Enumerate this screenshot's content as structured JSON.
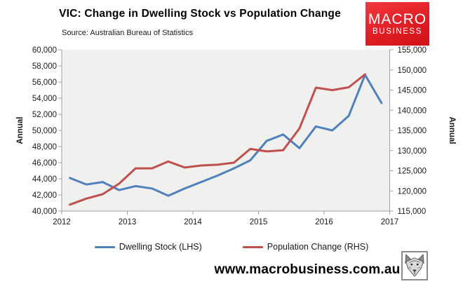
{
  "header": {
    "title": "VIC: Change in Dwelling Stock vs Population Change",
    "subtitle": "Source: Australian Bureau of Statistics",
    "logo": {
      "line1": "MACRO",
      "line2": "BUSINESS",
      "bg_color": "#e01e24"
    }
  },
  "chart_data": {
    "type": "line",
    "x_categories": [
      "2012 Q1",
      "2012 Q2",
      "2012 Q3",
      "2012 Q4",
      "2013 Q1",
      "2013 Q2",
      "2013 Q3",
      "2013 Q4",
      "2014 Q1",
      "2014 Q2",
      "2014 Q3",
      "2014 Q4",
      "2015 Q1",
      "2015 Q2",
      "2015 Q3",
      "2015 Q4",
      "2016 Q1",
      "2016 Q2",
      "2016 Q3",
      "2016 Q4"
    ],
    "x_tick_labels": [
      "2012",
      "2013",
      "2014",
      "2015",
      "2016",
      "2017"
    ],
    "series": [
      {
        "name": "Dwelling Stock (LHS)",
        "axis": "left",
        "color": "#4f81bd",
        "values": [
          44100,
          43300,
          43600,
          42600,
          43100,
          42800,
          41900,
          42800,
          43600,
          44400,
          45300,
          46300,
          48700,
          49500,
          47800,
          50500,
          50000,
          51800,
          56900,
          53400
        ]
      },
      {
        "name": "Population Change (RHS)",
        "axis": "right",
        "color": "#c0504d",
        "values": [
          116600,
          118100,
          119200,
          121800,
          125600,
          125600,
          127300,
          125800,
          126300,
          126500,
          127000,
          130400,
          129800,
          130100,
          135500,
          145600,
          145000,
          145700,
          148900
        ]
      }
    ],
    "left_axis": {
      "label": "Annual",
      "min": 40000,
      "max": 60000,
      "step": 2000
    },
    "right_axis": {
      "label": "Annual",
      "min": 115000,
      "max": 155000,
      "step": 5000
    },
    "plot_bg": "#f0f0ee",
    "axis_color": "#a0a0a0",
    "grid": false,
    "legend_position": "bottom"
  },
  "footer": {
    "website": "www.macrobusiness.com.au",
    "logo_icon": "wolf-icon"
  }
}
